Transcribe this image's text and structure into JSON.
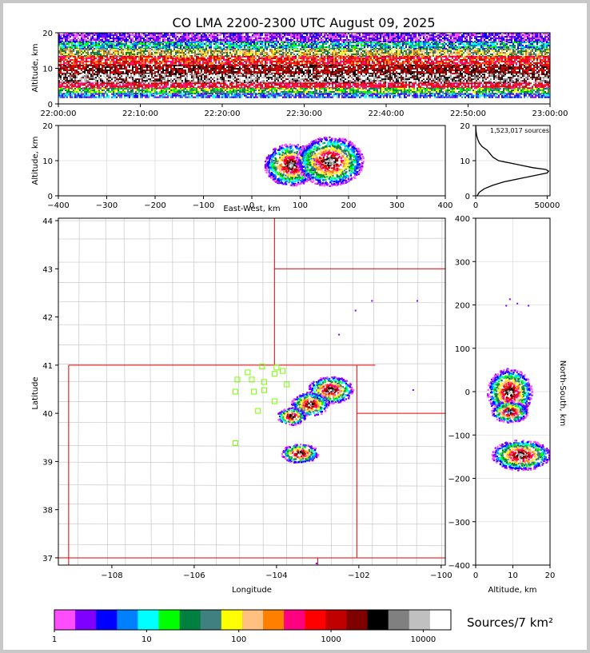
{
  "chart_data": {
    "type": "heatmap",
    "title": "CO LMA 2200-2300 UTC August 09, 2025",
    "time_height": {
      "ylabel": "Altitude, km",
      "ylim": [
        0,
        20
      ],
      "yticks": [
        "0",
        "10",
        "20"
      ],
      "xticks": [
        "22:00:00",
        "22:10:00",
        "22:20:00",
        "22:30:00",
        "22:40:00",
        "22:50:00",
        "23:00:00"
      ]
    },
    "ew_height": {
      "xlabel": "East-West, km",
      "ylabel": "Altitude, km",
      "xlim": [
        -400,
        400
      ],
      "ylim": [
        0,
        20
      ],
      "xticks": [
        "−400",
        "−300",
        "−200",
        "−100",
        "0",
        "100",
        "200",
        "300",
        "400"
      ],
      "yticks": [
        "0",
        "10",
        "20"
      ],
      "cells": [
        {
          "x": 80,
          "z": 9,
          "rx": 55,
          "rz": 6
        },
        {
          "x": 160,
          "z": 10,
          "rx": 70,
          "rz": 7
        }
      ]
    },
    "histogram": {
      "annotation": "1,523,017 sources",
      "xticks": [
        "0",
        "50000"
      ],
      "yticks": [
        "0",
        "10",
        "20"
      ],
      "xlim": [
        0,
        52000
      ],
      "profile": [
        [
          0,
          1000
        ],
        [
          1,
          2500
        ],
        [
          2,
          6000
        ],
        [
          3,
          12000
        ],
        [
          4,
          20000
        ],
        [
          5,
          32000
        ],
        [
          6,
          44000
        ],
        [
          6.5,
          50000
        ],
        [
          7,
          51000
        ],
        [
          7.5,
          49000
        ],
        [
          8,
          40000
        ],
        [
          9,
          28000
        ],
        [
          10,
          16000
        ],
        [
          11,
          12000
        ],
        [
          12,
          10000
        ],
        [
          13,
          8000
        ],
        [
          14,
          4500
        ],
        [
          15,
          2600
        ],
        [
          16,
          1500
        ],
        [
          17,
          800
        ],
        [
          18,
          400
        ],
        [
          19,
          150
        ],
        [
          20,
          50
        ]
      ]
    },
    "plan_view": {
      "xlabel": "Longitude",
      "ylabel": "Latitude",
      "xlim": [
        -109.3,
        -99.9
      ],
      "ylim": [
        36.85,
        44.05
      ],
      "xticks": [
        "−108",
        "−106",
        "−104",
        "−102",
        "−100"
      ],
      "yticks": [
        "37",
        "38",
        "39",
        "40",
        "41",
        "42",
        "43",
        "44"
      ],
      "stations": [
        [
          -104.7,
          40.85
        ],
        [
          -104.0,
          40.95
        ],
        [
          -103.85,
          40.88
        ],
        [
          -104.05,
          40.82
        ],
        [
          -104.35,
          40.97
        ],
        [
          -104.6,
          40.7
        ],
        [
          -104.3,
          40.65
        ],
        [
          -103.75,
          40.6
        ],
        [
          -104.95,
          40.7
        ],
        [
          -105.0,
          40.45
        ],
        [
          -104.55,
          40.45
        ],
        [
          -104.3,
          40.48
        ],
        [
          -104.05,
          40.25
        ],
        [
          -104.45,
          40.05
        ],
        [
          -105.0,
          39.38
        ]
      ],
      "cells": [
        {
          "lon": -102.7,
          "lat": 40.5,
          "rlon": 0.55,
          "rlat": 0.28
        },
        {
          "lon": -103.2,
          "lat": 40.2,
          "rlon": 0.45,
          "rlat": 0.25
        },
        {
          "lon": -103.65,
          "lat": 39.95,
          "rlon": 0.35,
          "rlat": 0.18
        },
        {
          "lon": -103.45,
          "lat": 39.18,
          "rlon": 0.45,
          "rlat": 0.2
        }
      ]
    },
    "ns_altitude": {
      "xlabel": "Altitude, km",
      "ylabel": "North-South, km",
      "xlim": [
        0,
        20
      ],
      "ylim": [
        -400,
        400
      ],
      "xticks": [
        "0",
        "10",
        "20"
      ],
      "yticks": [
        "−400",
        "−300",
        "−200",
        "−100",
        "0",
        "100",
        "200",
        "300",
        "400"
      ],
      "cells": [
        {
          "z": 9,
          "y": 0,
          "rz": 6,
          "ry": 55
        },
        {
          "z": 9,
          "y": -45,
          "rz": 5,
          "ry": 25
        },
        {
          "z": 12,
          "y": -145,
          "rz": 8,
          "ry": 35
        }
      ]
    },
    "colorbar": {
      "label": "Sources/7 km²",
      "tick_labels": [
        "1",
        "10",
        "100",
        "1000",
        "10000"
      ],
      "colors": [
        "#ff4dff",
        "#8000ff",
        "#0000ff",
        "#0080ff",
        "#00ffff",
        "#00ff00",
        "#008040",
        "#408080",
        "#ffff00",
        "#ffc080",
        "#ff8000",
        "#ff0080",
        "#ff0000",
        "#c00000",
        "#800000",
        "#000000",
        "#808080",
        "#c0c0c0",
        "#ffffff"
      ]
    }
  }
}
